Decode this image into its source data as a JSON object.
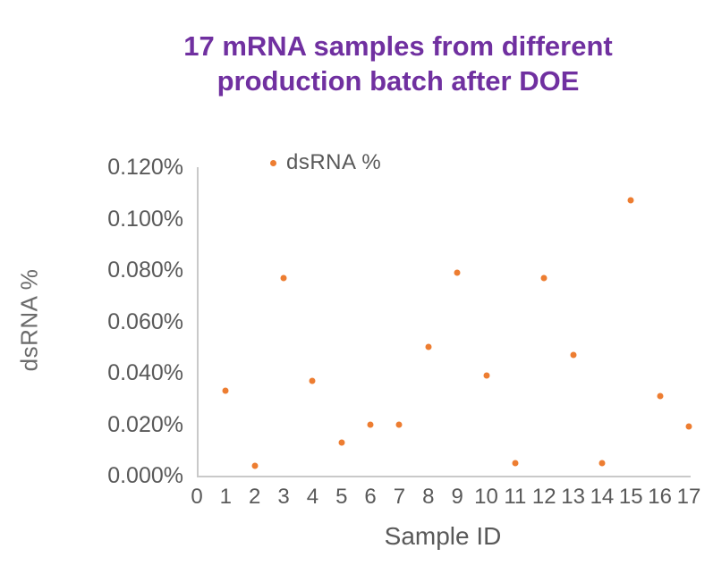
{
  "title": {
    "line1": "17 mRNA samples from different",
    "line2": "production batch after DOE"
  },
  "legend": {
    "label": "dsRNA %"
  },
  "colors": {
    "title_purple": "#7030A0",
    "point_orange": "#ED7D31",
    "axis_text_gray": "#595959",
    "axis_line_gray": "#C9C9C9"
  },
  "chart_data": {
    "type": "scatter",
    "title": "17 mRNA samples from different production batch after DOE",
    "xlabel": "Sample ID",
    "ylabel": "dsRNA %",
    "legend_entries": [
      "dsRNA %"
    ],
    "legend_position": "top-inside",
    "grid": false,
    "xlim": [
      0,
      17
    ],
    "ylim_percent": [
      0.0,
      0.12
    ],
    "x_tick_labels": [
      "0",
      "1",
      "2",
      "3",
      "4",
      "5",
      "6",
      "7",
      "8",
      "9",
      "10",
      "11",
      "12",
      "13",
      "14",
      "15",
      "16",
      "17"
    ],
    "y_ticks": [
      {
        "label": "0.120%",
        "value": 0.12
      },
      {
        "label": "0.100%",
        "value": 0.1
      },
      {
        "label": "0.080%",
        "value": 0.08
      },
      {
        "label": "0.060%",
        "value": 0.06
      },
      {
        "label": "0.040%",
        "value": 0.04
      },
      {
        "label": "0.020%",
        "value": 0.02
      },
      {
        "label": "0.000%",
        "value": 0.0
      }
    ],
    "series": [
      {
        "name": "dsRNA %",
        "y_unit": "percent",
        "x": [
          1,
          2,
          3,
          4,
          5,
          6,
          7,
          8,
          9,
          10,
          11,
          12,
          13,
          14,
          15,
          16,
          17
        ],
        "y": [
          0.033,
          0.004,
          0.077,
          0.037,
          0.013,
          0.02,
          0.02,
          0.05,
          0.079,
          0.039,
          0.005,
          0.077,
          0.047,
          0.005,
          0.107,
          0.031,
          0.019
        ]
      }
    ]
  }
}
